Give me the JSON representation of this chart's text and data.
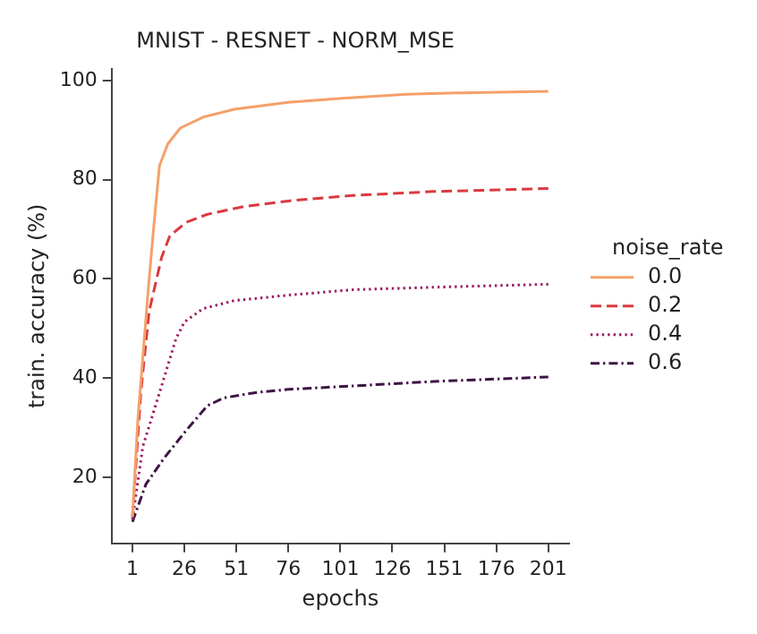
{
  "chart_data": {
    "type": "line",
    "title": "MNIST - RESNET - NORM_MSE",
    "xlabel": "epochs",
    "ylabel": "train. accuracy (%)",
    "legend_title": "noise_rate",
    "legend": "right",
    "grid": false,
    "marker": "none",
    "xlim": [
      -9,
      211
    ],
    "xticks": [
      1,
      26,
      51,
      76,
      101,
      126,
      151,
      176,
      201
    ],
    "ylim": [
      6.65,
      102.35
    ],
    "yticks": [
      20,
      40,
      60,
      80,
      100
    ],
    "series": [
      {
        "name": "0.0",
        "color": "#f4a06a",
        "line_style": "solid",
        "x": [
          1,
          3.6,
          8.8,
          12,
          14,
          18,
          24,
          35,
          50,
          76,
          102,
          133,
          159,
          201
        ],
        "values": [
          12,
          31.7,
          58.9,
          74,
          82.8,
          87.2,
          90.4,
          92.6,
          94.2,
          95.6,
          96.4,
          97.2,
          97.5,
          97.8
        ]
      },
      {
        "name": "0.2",
        "color": "#d93a3f",
        "line_style": "dashed",
        "x": [
          1,
          5,
          9,
          15,
          19,
          27,
          37,
          55,
          76,
          107,
          146,
          201
        ],
        "values": [
          12,
          37,
          53.4,
          64.3,
          68.7,
          71.4,
          73,
          74.6,
          75.7,
          76.8,
          77.6,
          78.2
        ]
      },
      {
        "name": "0.4",
        "color": "#9b1b63",
        "line_style": "dotted",
        "x": [
          1,
          6,
          14,
          22,
          26,
          35,
          50,
          76,
          107,
          146,
          201
        ],
        "values": [
          11.5,
          26.2,
          37,
          48,
          51.3,
          54,
          55.6,
          56.7,
          57.8,
          58.3,
          58.9
        ]
      },
      {
        "name": "0.6",
        "color": "#3d1544",
        "line_style": "dashdot",
        "x": [
          1,
          7.5,
          16.5,
          27,
          37,
          45,
          61,
          76,
          107,
          146,
          201
        ],
        "values": [
          11,
          18.6,
          24,
          29.5,
          34.4,
          36,
          37.1,
          37.7,
          38.4,
          39.3,
          40.2
        ]
      }
    ]
  }
}
